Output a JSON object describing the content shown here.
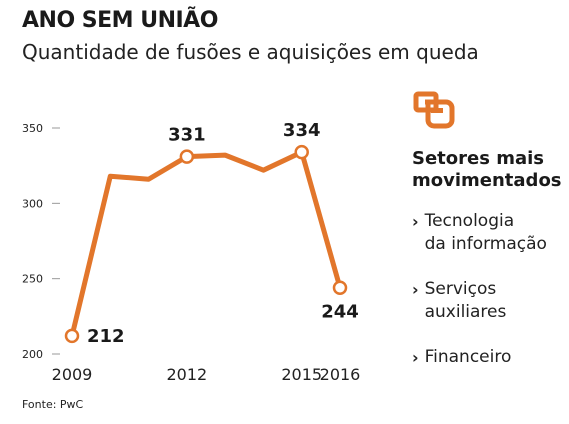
{
  "header": {
    "title": "ANO SEM UNIÃO",
    "subtitle": "Quantidade de fusões e aquisições em queda"
  },
  "chart_data": {
    "type": "line",
    "title": "ANO SEM UNIÃO",
    "subtitle": "Quantidade de fusões e aquisições em queda",
    "xlabel": "",
    "ylabel": "",
    "x": [
      2009,
      2010,
      2011,
      2012,
      2013,
      2014,
      2015,
      2016
    ],
    "x_tick_labels": [
      "2009",
      "2012",
      "2015",
      "2016"
    ],
    "x_tick_values": [
      2009,
      2012,
      2015,
      2016
    ],
    "series": [
      {
        "values": [
          212,
          318,
          316,
          331,
          332,
          322,
          334,
          244
        ]
      }
    ],
    "data_labels": [
      {
        "x": 2009,
        "text": "212"
      },
      {
        "x": 2012,
        "text": "331"
      },
      {
        "x": 2015,
        "text": "334"
      },
      {
        "x": 2016,
        "text": "244"
      }
    ],
    "y_ticks": [
      200,
      250,
      300,
      350
    ],
    "ylim": [
      200,
      350
    ],
    "grid": false,
    "line_color": "#e2762b"
  },
  "sidebar": {
    "icon": "sectors-icon",
    "heading": "Setores mais movimentados",
    "items": [
      "Tecnologia\nda informação",
      "Serviços\nauxiliares",
      "Financeiro"
    ],
    "bullet": "›"
  },
  "footer": {
    "source": "Fonte: PwC"
  },
  "colors": {
    "accent": "#e2762b"
  }
}
